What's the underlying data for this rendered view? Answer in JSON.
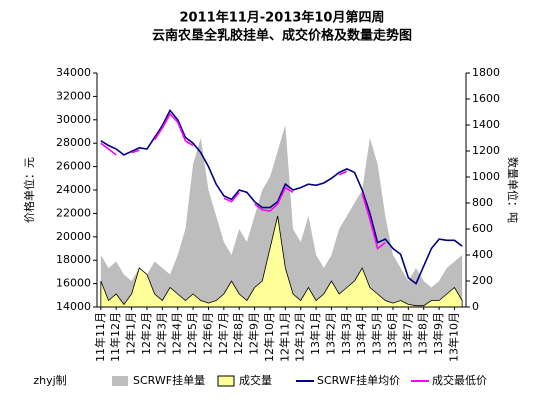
{
  "chart_data": {
    "type": "combo",
    "title": "2011年11月-2013年10月第四周",
    "subtitle": "云南农垦全乳胶挂单、成交价格及数量走势图",
    "ylabel": "价格单位：元",
    "y2label": "数量单位：吨",
    "note": "zhyj制",
    "categories": [
      "11年11月",
      null,
      "11年12月",
      null,
      "12年1月",
      null,
      "12年2月",
      null,
      "12年3月",
      null,
      "12年4月",
      null,
      "12年5月",
      null,
      "12年6月",
      null,
      "12年7月",
      null,
      "12年8月",
      null,
      "12年9月",
      null,
      "12年10月",
      null,
      "12年11月",
      null,
      "12年12月",
      null,
      "13年1月",
      null,
      "13年2月",
      null,
      "13年3月",
      null,
      "13年4月",
      null,
      "13年5月",
      null,
      "13年6月",
      null,
      "13年7月",
      null,
      "13年8月",
      null,
      "13年9月",
      null,
      "13年10月",
      null
    ],
    "ylim": [
      14000,
      34000
    ],
    "yticks": [
      14000,
      16000,
      18000,
      20000,
      22000,
      24000,
      26000,
      28000,
      30000,
      32000,
      34000
    ],
    "y2lim": [
      0,
      1800
    ],
    "y2ticks": [
      0,
      200,
      400,
      600,
      800,
      1000,
      1200,
      1400,
      1600,
      1800
    ],
    "series": [
      {
        "name": "SCRWF挂单量",
        "type": "area",
        "axis": "y2",
        "color": "#bdbdbd",
        "values": [
          400,
          300,
          350,
          250,
          200,
          300,
          250,
          350,
          300,
          250,
          400,
          600,
          1100,
          1300,
          900,
          700,
          500,
          400,
          600,
          500,
          700,
          900,
          1000,
          1200,
          1400,
          600,
          500,
          700,
          400,
          300,
          400,
          600,
          700,
          800,
          900,
          1300,
          1100,
          700,
          400,
          300,
          200,
          300,
          200,
          150,
          200,
          300,
          350,
          400
        ]
      },
      {
        "name": "成交量",
        "type": "area",
        "axis": "y2",
        "color": "#ffff99",
        "values": [
          200,
          50,
          100,
          20,
          100,
          300,
          250,
          100,
          50,
          150,
          100,
          50,
          100,
          50,
          30,
          50,
          100,
          200,
          100,
          50,
          150,
          200,
          450,
          700,
          300,
          100,
          50,
          150,
          50,
          100,
          200,
          100,
          150,
          200,
          300,
          150,
          100,
          50,
          30,
          50,
          20,
          10,
          10,
          50,
          50,
          100,
          150,
          50
        ]
      },
      {
        "name": "SCRWF挂单均价",
        "type": "line",
        "color": "#000080",
        "values": [
          28200,
          27800,
          27500,
          27000,
          27300,
          27600,
          27500,
          28500,
          29500,
          30800,
          30000,
          28500,
          28000,
          27200,
          26000,
          24500,
          23500,
          23200,
          24000,
          23800,
          23000,
          22500,
          22500,
          23000,
          24500,
          24000,
          24200,
          24500,
          24400,
          24600,
          25000,
          25500,
          25800,
          25500,
          24000,
          22000,
          19500,
          19800,
          19000,
          18500,
          16500,
          16000,
          17500,
          19000,
          19800,
          19700,
          19700,
          19200
        ]
      },
      {
        "name": "成交最低价",
        "type": "line",
        "color": "#ff00ff",
        "values": [
          28000,
          27500,
          27000,
          null,
          27200,
          27400,
          null,
          28300,
          29300,
          30500,
          29800,
          28200,
          27800,
          null,
          25700,
          null,
          23300,
          23000,
          23800,
          null,
          22800,
          22300,
          22200,
          22800,
          24200,
          23800,
          null,
          null,
          null,
          null,
          null,
          25300,
          25600,
          null,
          23700,
          21500,
          19000,
          19500,
          null,
          null,
          null,
          null,
          null,
          null,
          null,
          null,
          null,
          null
        ]
      }
    ],
    "legend": "bottom"
  }
}
